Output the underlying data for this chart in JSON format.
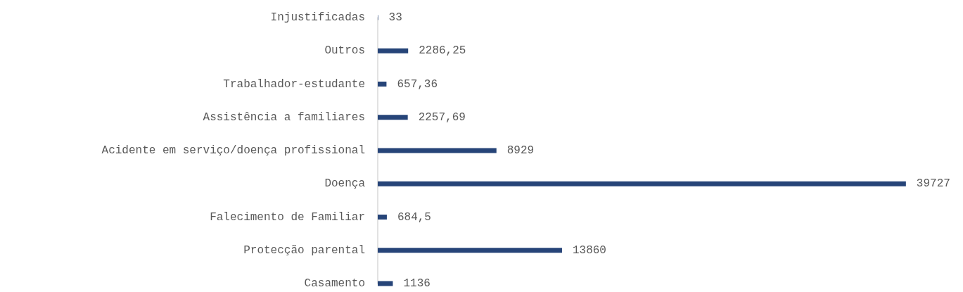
{
  "chart_data": {
    "type": "bar",
    "orientation": "horizontal",
    "categories": [
      "Injustificadas",
      "Outros",
      "Trabalhador-estudante",
      "Assistência a familiares",
      "Acidente em serviço/doença profissional",
      "Doença",
      "Falecimento de Familiar",
      "Protecção parental",
      "Casamento"
    ],
    "values": [
      33,
      2286.25,
      657.36,
      2257.69,
      8929,
      39727,
      684.5,
      13860,
      1136
    ],
    "value_labels": [
      "33",
      "2286,25",
      "657,36",
      "2257,69",
      "8929",
      "39727",
      "684,5",
      "13860",
      "1136"
    ],
    "color": "#264478"
  }
}
